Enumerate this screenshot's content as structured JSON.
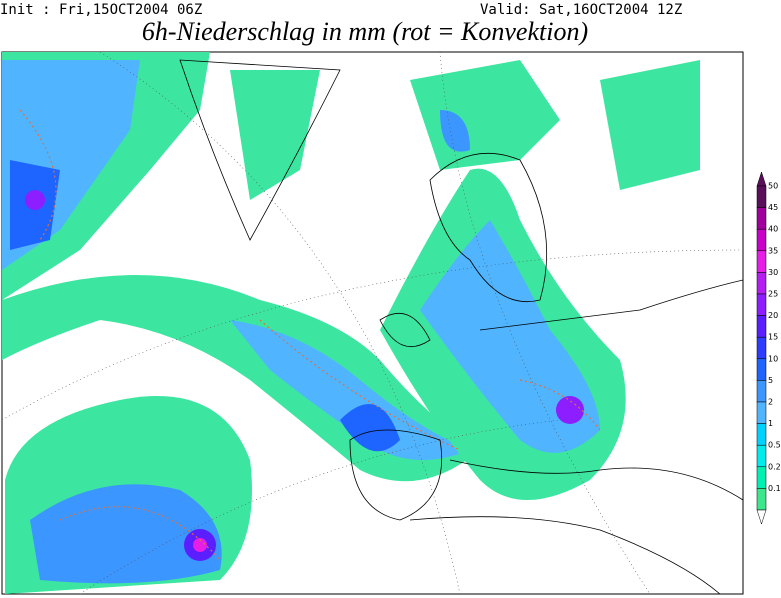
{
  "header": {
    "init": "Init : Fri,15OCT2004 06Z",
    "valid": "Valid: Sat,16OCT2004 12Z",
    "title": "6h-Niederschlag in mm (rot = Konvektion)"
  },
  "legend": {
    "levels": [
      50,
      45,
      40,
      35,
      30,
      25,
      20,
      15,
      10,
      5,
      2,
      1,
      0.5,
      0.2,
      0.1
    ],
    "colors": [
      "#5a0f5a",
      "#a0009b",
      "#c800c8",
      "#e61ee6",
      "#b41ef0",
      "#8c1eff",
      "#5a1eff",
      "#2d3cff",
      "#1e64ff",
      "#3c96ff",
      "#50b4ff",
      "#00d2ff",
      "#00ebeb",
      "#00f0b4",
      "#3ce68c"
    ]
  }
}
